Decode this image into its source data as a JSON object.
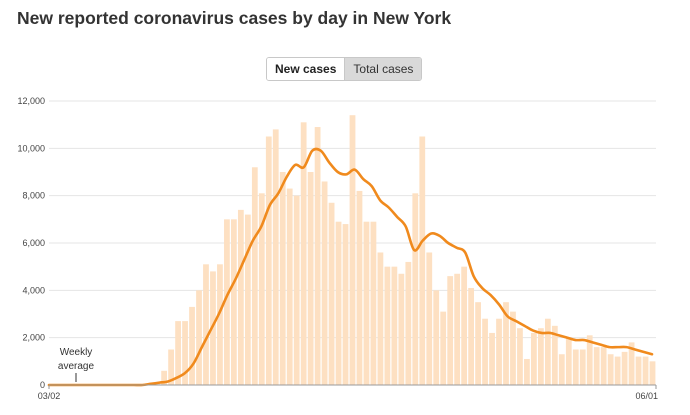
{
  "title": "New reported coronavirus cases by day in New York",
  "toggle": {
    "new_cases": "New cases",
    "total_cases": "Total cases"
  },
  "colors": {
    "bar": "#fde0c2",
    "line": "#f08a1d",
    "grid": "#e5e5e5",
    "axis": "#999999"
  },
  "annotation": {
    "line1": "Weekly",
    "line2": "average"
  },
  "chart_data": {
    "type": "bar",
    "title": "New reported coronavirus cases by day in New York",
    "x_labels": [
      "03/02",
      "06/01"
    ],
    "ylim": [
      0,
      12000
    ],
    "yticks": [
      "0",
      "2,000",
      "4,000",
      "6,000",
      "8,000",
      "10,000",
      "12,000"
    ],
    "grid": true,
    "series": [
      {
        "type": "bar",
        "values": [
          0,
          0,
          0,
          0,
          0,
          0,
          0,
          0,
          0,
          0,
          0,
          0,
          0,
          0,
          0,
          100,
          600,
          1500,
          2700,
          2700,
          3300,
          4000,
          5100,
          4800,
          5100,
          7000,
          7000,
          7400,
          7200,
          9200,
          8100,
          10500,
          10800,
          9000,
          8300,
          8000,
          11100,
          9000,
          10900,
          8600,
          7700,
          6900,
          6800,
          11400,
          8200,
          6900,
          6900,
          5600,
          5000,
          5000,
          4700,
          5200,
          8100,
          10500,
          5600,
          4000,
          3100,
          4600,
          4700,
          5000,
          4100,
          3500,
          2800,
          2200,
          2800,
          3500,
          3100,
          2400,
          1100,
          2200,
          2400,
          2800,
          2500,
          1300,
          2000,
          1500,
          1500,
          2100,
          1600,
          1600,
          1300,
          1200,
          1400,
          1800,
          1200,
          1200,
          1000
        ]
      },
      {
        "type": "line",
        "values": [
          0,
          0,
          0,
          0,
          0,
          0,
          0,
          0,
          0,
          0,
          0,
          0,
          50,
          100,
          150,
          300,
          500,
          900,
          1600,
          2300,
          3000,
          3800,
          4500,
          5300,
          6100,
          6700,
          7600,
          8100,
          8800,
          9300,
          9200,
          9900,
          9900,
          9400,
          9000,
          8900,
          9100,
          8700,
          8400,
          7800,
          7500,
          7100,
          6700,
          5700,
          6100,
          6400,
          6300,
          6000,
          5800,
          5600,
          4600,
          4100,
          3800,
          3400,
          2900,
          2700,
          2500,
          2300,
          2200,
          2200,
          2100,
          2000,
          1900,
          1900,
          1800,
          1700,
          1600,
          1600,
          1600,
          1500,
          1400,
          1300
        ]
      }
    ]
  }
}
